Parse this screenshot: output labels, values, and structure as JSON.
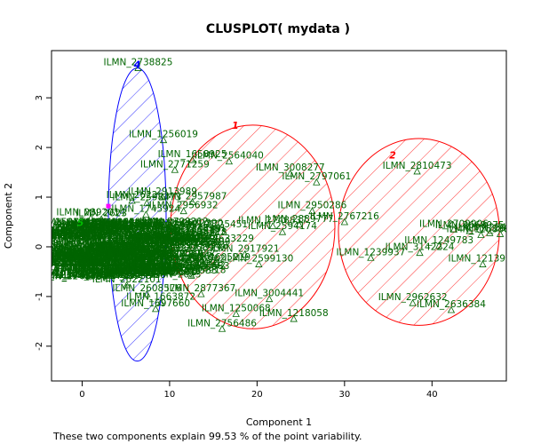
{
  "chart_data": {
    "type": "scatter",
    "title": "CLUSPLOT( mydata )",
    "xlabel": "Component 1",
    "ylabel": "Component 2",
    "footnote": "These two components explain 99.53 % of the point variability.",
    "xlim": [
      -3.5,
      48.5
    ],
    "ylim": [
      -2.7,
      3.95
    ],
    "xticks": [
      0,
      10,
      20,
      30,
      40
    ],
    "yticks": [
      -2,
      -1,
      0,
      1,
      2,
      3
    ],
    "grid": false,
    "colors": {
      "points": "#006400",
      "cluster_blue": "#0000ff",
      "cluster_red": "#ff0000",
      "magenta_marker": "#ff00ff",
      "green_label": "#00bb00"
    },
    "clusters": [
      {
        "label": "1",
        "color": "#ff0000",
        "center": [
          19.5,
          0.4
        ],
        "rx": 9.4,
        "ry": 2.05,
        "label_at": [
          17.5,
          2.38
        ]
      },
      {
        "label": "2",
        "color": "#ff0000",
        "center": [
          38.5,
          0.3
        ],
        "rx": 9.2,
        "ry": 1.88,
        "label_at": [
          35.5,
          1.78
        ]
      },
      {
        "label": "4",
        "color": "#0000ff",
        "center": [
          6.3,
          0.65
        ],
        "rx": 3.3,
        "ry": 2.95,
        "label_at": [
          6.3,
          3.6
        ]
      },
      {
        "label": "5",
        "color": "#00bb00",
        "center": [
          0,
          0.1
        ],
        "rx": 0,
        "ry": 0,
        "label_at": [
          -0.2,
          0.42
        ]
      }
    ],
    "points": [
      {
        "x": 6.4,
        "y": 3.6,
        "label": "ILMN_2738825"
      },
      {
        "x": 9.3,
        "y": 2.15,
        "label": "ILMN_1256019"
      },
      {
        "x": 12.6,
        "y": 1.75,
        "label": "ILMN_1658925"
      },
      {
        "x": 16.8,
        "y": 1.72,
        "label": "ILMN_2564040"
      },
      {
        "x": 10.6,
        "y": 1.55,
        "label": "ILMN_2771259"
      },
      {
        "x": 23.8,
        "y": 1.48,
        "label": "ILMN_3008277"
      },
      {
        "x": 26.8,
        "y": 1.3,
        "label": "ILMN_2797061"
      },
      {
        "x": 38.3,
        "y": 1.52,
        "label": "ILMN_2810473"
      },
      {
        "x": 9.2,
        "y": 1.0,
        "label": "ILMN_2913989"
      },
      {
        "x": 5.7,
        "y": 0.93,
        "label": "ILMN_2622"
      },
      {
        "x": 12.6,
        "y": 0.9,
        "label": "ILMN_2957987"
      },
      {
        "x": 26.3,
        "y": 0.72,
        "label": "ILMN_2950286"
      },
      {
        "x": 11.6,
        "y": 0.72,
        "label": "ILMN_2956932"
      },
      {
        "x": 7.3,
        "y": 0.65,
        "label": "ILMN_1745924"
      },
      {
        "x": 2.2,
        "y": 0.56,
        "label": "ILMN_2623"
      },
      {
        "x": 30.0,
        "y": 0.5,
        "label": "ILMN_2767216"
      },
      {
        "x": 24.8,
        "y": 0.45,
        "label": "ILMN_2889777"
      },
      {
        "x": 21.8,
        "y": 0.42,
        "label": "ILMN_2748837"
      },
      {
        "x": 15.0,
        "y": 0.34,
        "label": "ILMN_2725451"
      },
      {
        "x": 22.9,
        "y": 0.3,
        "label": "ILMN_2594174"
      },
      {
        "x": 12.5,
        "y": 0.2,
        "label": "ILMN_2595323"
      },
      {
        "x": 42.5,
        "y": 0.35,
        "label": "ILMN_2709906"
      },
      {
        "x": 44.3,
        "y": 0.32,
        "label": "ILMN_2668975"
      },
      {
        "x": 46.6,
        "y": 0.28,
        "label": "ILMN_1234698"
      },
      {
        "x": 47.8,
        "y": 0.26,
        "label": "ILMN_2626491"
      },
      {
        "x": 45.6,
        "y": 0.24,
        "label": "ILMN_1258881"
      },
      {
        "x": 15.7,
        "y": 0.05,
        "label": "ILMN_2633229"
      },
      {
        "x": 13.0,
        "y": -0.02,
        "label": "ILMN_1220499"
      },
      {
        "x": 40.8,
        "y": 0.02,
        "label": "ILMN_1249783"
      },
      {
        "x": 18.6,
        "y": -0.15,
        "label": "ILMN_2917921"
      },
      {
        "x": 38.6,
        "y": -0.12,
        "label": "ILMN_3142224"
      },
      {
        "x": 33.0,
        "y": -0.22,
        "label": "ILMN_1239937"
      },
      {
        "x": 20.2,
        "y": -0.35,
        "label": "ILMN_2599130"
      },
      {
        "x": 45.8,
        "y": -0.35,
        "label": "ILMN_1213949"
      },
      {
        "x": 12.9,
        "y": -0.5,
        "label": "ILMN_1226583"
      },
      {
        "x": 12.5,
        "y": -0.58,
        "label": "ILMN_1214918"
      },
      {
        "x": 15.3,
        "y": -0.32,
        "label": "ILMN_2605219"
      },
      {
        "x": 5.1,
        "y": -0.77,
        "label": "ILMN_2622101"
      },
      {
        "x": 3.2,
        "y": -0.58,
        "label": "ILMN_1224765"
      },
      {
        "x": 13.6,
        "y": -0.95,
        "label": "ILMN_2877367"
      },
      {
        "x": 21.4,
        "y": -1.05,
        "label": "ILMN_3004441"
      },
      {
        "x": 9.0,
        "y": -1.12,
        "label": "ILMN_1663872"
      },
      {
        "x": 7.4,
        "y": -0.95,
        "label": "ILMN_2608576"
      },
      {
        "x": 8.4,
        "y": -1.25,
        "label": "ILMN_1697660"
      },
      {
        "x": 37.8,
        "y": -1.13,
        "label": "ILMN_2962632"
      },
      {
        "x": 42.2,
        "y": -1.27,
        "label": "ILMN_2636384"
      },
      {
        "x": 17.6,
        "y": -1.35,
        "label": "ILMN_1250068"
      },
      {
        "x": 24.2,
        "y": -1.45,
        "label": "ILMN_1218058"
      },
      {
        "x": 16.0,
        "y": -1.65,
        "label": "ILMN_2756486"
      },
      {
        "x": 1.0,
        "y": 0.58,
        "label": "ILMN_2892014"
      },
      {
        "x": 7.4,
        "y": 0.88,
        "label": "ILMN_2598473"
      },
      {
        "x": 4.7,
        "y": -0.42,
        "label": "ILMN_2711936"
      },
      {
        "x": 9.8,
        "y": -0.35,
        "label": "ILMN_2672290"
      },
      {
        "x": 11.0,
        "y": 0.1,
        "label": "ILMN_1241337"
      },
      {
        "x": 3.0,
        "y": 0.0,
        "label": "ILMN_2585562"
      },
      {
        "x": 0.5,
        "y": 0.2,
        "label": "ILMN_1248361"
      },
      {
        "x": 6.5,
        "y": -0.18,
        "label": "ILMN_2761533"
      },
      {
        "x": 8.6,
        "y": 0.28,
        "label": "ILMN_2799212"
      }
    ],
    "magenta_marker": {
      "x": 3.0,
      "y": 0.82
    }
  }
}
